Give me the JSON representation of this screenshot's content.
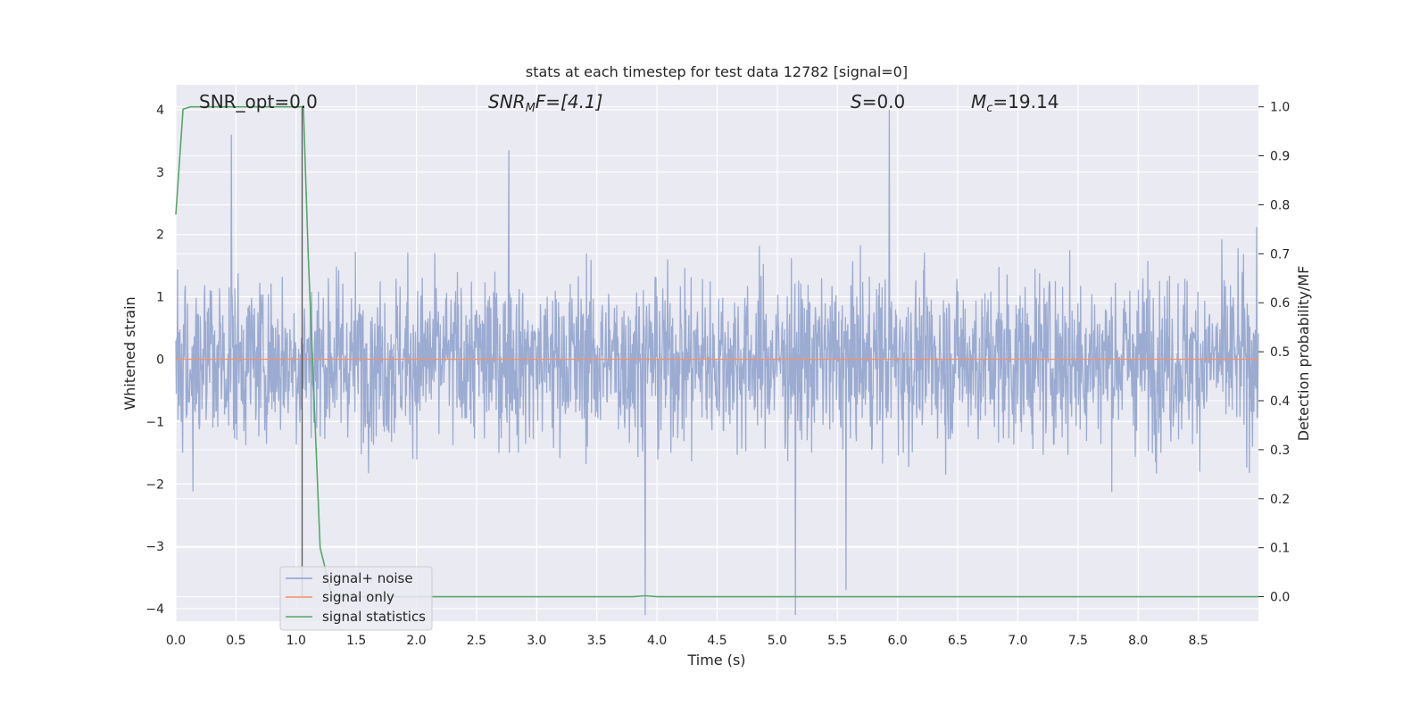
{
  "chart_data": {
    "type": "line",
    "title": "stats at each timestep for test data 12782 [signal=0]",
    "xlabel": "Time (s)",
    "ylabel": "Whitened strain",
    "ylabel_right": "Detection probability/MF",
    "xlim": [
      0,
      9.0
    ],
    "ylim": [
      -4.2,
      4.4
    ],
    "ylim_right": [
      -0.05,
      1.045
    ],
    "x_ticks": [
      "0.0",
      "0.5",
      "1.0",
      "1.5",
      "2.0",
      "2.5",
      "3.0",
      "3.5",
      "4.0",
      "4.5",
      "5.0",
      "5.5",
      "6.0",
      "6.5",
      "7.0",
      "7.5",
      "8.0",
      "8.5"
    ],
    "y_ticks": [
      "−4",
      "−3",
      "−2",
      "−1",
      "0",
      "1",
      "2",
      "3",
      "4"
    ],
    "y_right_ticks": [
      "0.0",
      "0.1",
      "0.2",
      "0.3",
      "0.4",
      "0.5",
      "0.6",
      "0.7",
      "0.8",
      "0.9",
      "1.0"
    ],
    "grid": true,
    "legend_position": "lower-left",
    "annotations": {
      "snr_opt": "SNR_opt=0.0",
      "snr_mf_main": "SNR",
      "snr_mf_sub": "M",
      "snr_mf_rest": "F=[4.1]",
      "s_var": "S",
      "s_rest": "=0.0",
      "mc_var": "M",
      "mc_sub": "c",
      "mc_rest": "=19.14"
    },
    "series": [
      {
        "name": "signal+ noise",
        "color": "#8da0cb",
        "description_axis": "left",
        "envelope_upper_typical": 1.7,
        "envelope_lower_typical": -1.7,
        "notable_peaks": [
          [
            0.46,
            3.6
          ],
          [
            2.77,
            3.35
          ],
          [
            5.93,
            4.0
          ],
          [
            3.9,
            -4.1
          ],
          [
            5.15,
            -4.1
          ],
          [
            5.57,
            -3.7
          ]
        ]
      },
      {
        "name": "signal only",
        "color": "#fc8d62",
        "axis": "left",
        "values_description_constant": 0.0
      },
      {
        "name": "signal statistics",
        "color": "#55a868",
        "axis": "right",
        "x": [
          0.0,
          0.06,
          0.12,
          0.5,
          1.0,
          1.06,
          1.1,
          1.2,
          1.3,
          3.8,
          3.9,
          4.0,
          6.0,
          9.0
        ],
        "y": [
          0.78,
          0.995,
          1.0,
          1.0,
          1.0,
          1.0,
          0.7,
          0.1,
          0.0,
          0.0,
          0.002,
          0.0,
          0.0,
          0.0
        ]
      }
    ],
    "vline_x": 1.05
  }
}
